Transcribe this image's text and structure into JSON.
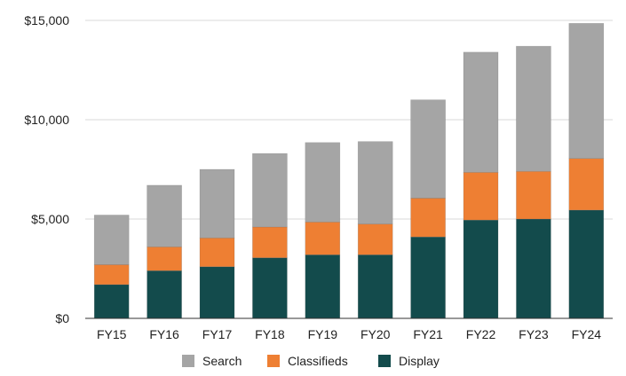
{
  "chart_data": {
    "type": "bar",
    "stacked": true,
    "title": "",
    "xlabel": "",
    "ylabel": "",
    "categories": [
      "FY15",
      "FY16",
      "FY17",
      "FY18",
      "FY19",
      "FY20",
      "FY21",
      "FY22",
      "FY23",
      "FY24"
    ],
    "series": [
      {
        "name": "Display",
        "color": "#134b4c",
        "values": [
          1700,
          2400,
          2600,
          3050,
          3200,
          3200,
          4100,
          4950,
          5000,
          5450
        ]
      },
      {
        "name": "Classifieds",
        "color": "#ee7f33",
        "values": [
          1000,
          1200,
          1450,
          1550,
          1650,
          1550,
          1950,
          2400,
          2400,
          2600
        ]
      },
      {
        "name": "Search",
        "color": "#a5a5a5",
        "values": [
          2500,
          3100,
          3450,
          3700,
          4000,
          4150,
          4950,
          6050,
          6300,
          6800
        ]
      }
    ],
    "ylim": [
      0,
      15000
    ],
    "yticks": [
      0,
      5000,
      10000,
      15000
    ],
    "ytick_labels": [
      "$0",
      "$5,000",
      "$10,000",
      "$15,000"
    ],
    "grid": true,
    "legend": {
      "position": "bottom",
      "entries": [
        "Search",
        "Classifieds",
        "Display"
      ]
    }
  }
}
